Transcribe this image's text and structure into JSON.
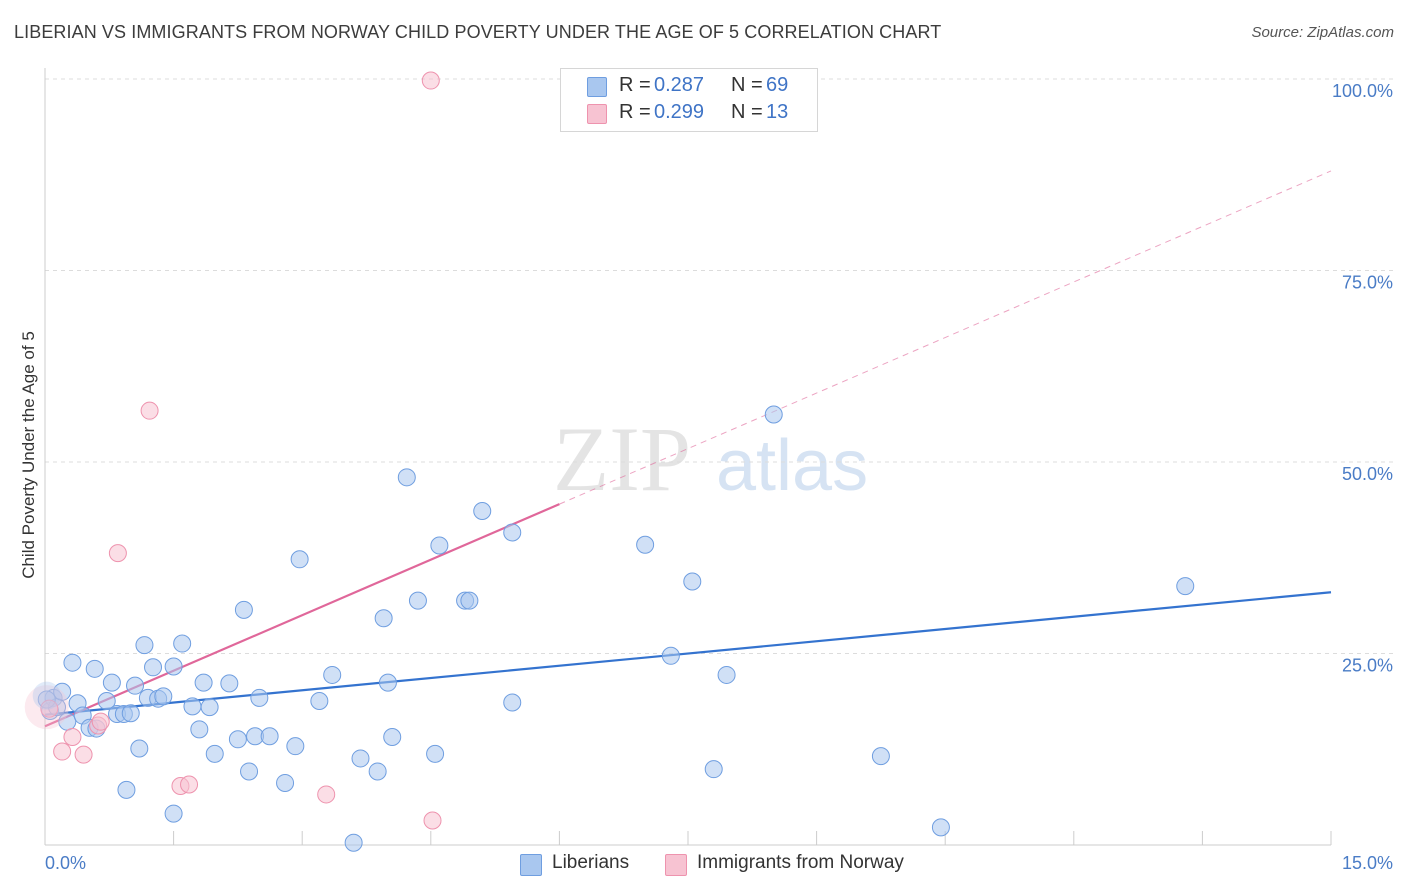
{
  "title": "LIBERIAN VS IMMIGRANTS FROM NORWAY CHILD POVERTY UNDER THE AGE OF 5 CORRELATION CHART",
  "source": "Source: ZipAtlas.com",
  "watermark": {
    "zip": "ZIP",
    "atlas": "atlas"
  },
  "legend_top": [
    {
      "r_label": "R =",
      "r_value": "0.287",
      "n_label": "N =",
      "n_value": "69",
      "color": "#a9c7ef",
      "stroke": "#6f9ee0"
    },
    {
      "r_label": "R =",
      "r_value": "0.299",
      "n_label": "N =",
      "n_value": "13",
      "color": "#f7c3d2",
      "stroke": "#ee93ae"
    }
  ],
  "chart_data": {
    "type": "scatter",
    "title": "LIBERIAN VS IMMIGRANTS FROM NORWAY CHILD POVERTY UNDER THE AGE OF 5 CORRELATION CHART",
    "xlabel": "",
    "ylabel": "Child Poverty Under the Age of 5",
    "xlim": [
      0,
      15
    ],
    "ylim": [
      0,
      100
    ],
    "x_tick_labels": [
      "0.0%",
      "15.0%"
    ],
    "y_tick_labels": [
      "25.0%",
      "50.0%",
      "75.0%",
      "100.0%"
    ],
    "y_ticks": [
      25,
      50,
      75,
      100
    ],
    "series": [
      {
        "name": "Liberians",
        "fill": "#a9c7ef",
        "stroke": "#6f9ee0",
        "line_color": "#3473cf",
        "trend": {
          "x0": 0,
          "y0": 17.0,
          "x1": 15,
          "y1": 33.0,
          "dashed_from": null
        },
        "points": [
          [
            0.06,
            17.5
          ],
          [
            0.1,
            19.2
          ],
          [
            0.14,
            18.0
          ],
          [
            0.2,
            20.0
          ],
          [
            0.26,
            16.1
          ],
          [
            0.32,
            23.8
          ],
          [
            0.38,
            18.5
          ],
          [
            0.44,
            16.9
          ],
          [
            0.52,
            15.3
          ],
          [
            0.58,
            23.0
          ],
          [
            0.6,
            15.2
          ],
          [
            0.72,
            18.8
          ],
          [
            0.78,
            21.2
          ],
          [
            0.84,
            17.1
          ],
          [
            0.92,
            17.1
          ],
          [
            0.95,
            7.2
          ],
          [
            1.0,
            17.2
          ],
          [
            1.05,
            20.8
          ],
          [
            1.1,
            12.6
          ],
          [
            1.16,
            26.1
          ],
          [
            1.2,
            19.2
          ],
          [
            1.26,
            23.2
          ],
          [
            1.32,
            19.1
          ],
          [
            1.38,
            19.4
          ],
          [
            1.5,
            4.1
          ],
          [
            1.5,
            23.3
          ],
          [
            1.6,
            26.3
          ],
          [
            1.72,
            18.1
          ],
          [
            1.8,
            15.1
          ],
          [
            1.85,
            21.2
          ],
          [
            1.92,
            18.0
          ],
          [
            1.98,
            11.9
          ],
          [
            2.15,
            21.1
          ],
          [
            2.25,
            13.8
          ],
          [
            2.32,
            30.7
          ],
          [
            2.38,
            9.6
          ],
          [
            2.45,
            14.2
          ],
          [
            2.5,
            19.2
          ],
          [
            2.62,
            14.2
          ],
          [
            2.8,
            8.1
          ],
          [
            2.92,
            12.9
          ],
          [
            2.97,
            37.3
          ],
          [
            3.2,
            18.8
          ],
          [
            3.35,
            22.2
          ],
          [
            3.6,
            0.3
          ],
          [
            3.68,
            11.3
          ],
          [
            3.88,
            9.6
          ],
          [
            3.95,
            29.6
          ],
          [
            4.0,
            21.2
          ],
          [
            4.05,
            14.1
          ],
          [
            4.22,
            48.0
          ],
          [
            4.35,
            31.9
          ],
          [
            4.55,
            11.9
          ],
          [
            4.6,
            39.1
          ],
          [
            4.9,
            31.9
          ],
          [
            4.95,
            31.9
          ],
          [
            5.1,
            43.6
          ],
          [
            5.45,
            40.8
          ],
          [
            5.45,
            18.6
          ],
          [
            7.0,
            39.2
          ],
          [
            7.3,
            24.7
          ],
          [
            7.55,
            34.4
          ],
          [
            7.8,
            9.9
          ],
          [
            7.95,
            22.2
          ],
          [
            8.5,
            56.2
          ],
          [
            9.75,
            11.6
          ],
          [
            10.45,
            2.3
          ],
          [
            13.3,
            33.8
          ],
          [
            0.02,
            19.0
          ]
        ]
      },
      {
        "name": "Immigrants from Norway",
        "fill": "#f7c3d2",
        "stroke": "#ee93ae",
        "line_color": "#e0679a",
        "trend": {
          "x0": 0,
          "y0": 15.5,
          "x1": 15,
          "y1": 88.0,
          "dashed_from": 6.0
        },
        "points": [
          [
            0.05,
            17.8
          ],
          [
            0.2,
            12.2
          ],
          [
            0.32,
            14.1
          ],
          [
            0.45,
            11.8
          ],
          [
            0.62,
            15.6
          ],
          [
            0.65,
            16.1
          ],
          [
            0.85,
            38.1
          ],
          [
            1.22,
            56.7
          ],
          [
            1.58,
            7.7
          ],
          [
            1.68,
            7.9
          ],
          [
            3.28,
            6.6
          ],
          [
            4.52,
            3.2
          ],
          [
            4.5,
            99.8
          ]
        ]
      }
    ]
  }
}
